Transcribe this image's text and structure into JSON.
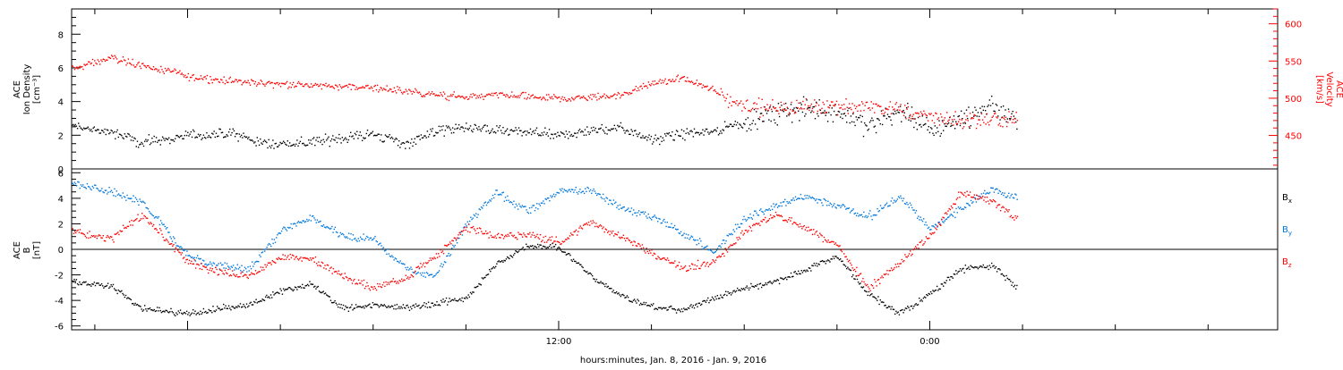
{
  "chart_data": [
    {
      "type": "scatter",
      "panel": "top",
      "ylabel_left": [
        "ACE",
        "Ion Density",
        "[cm⁻³]"
      ],
      "ylabel_right": [
        "ACE",
        "Velocity",
        "[km/s]"
      ],
      "ylim_left": [
        0,
        9.5
      ],
      "yticks_left": [
        0,
        2,
        4,
        6,
        8
      ],
      "ylim_right": [
        405,
        620
      ],
      "yticks_right": [
        450,
        500,
        550,
        600
      ],
      "series": [
        {
          "axis": "left",
          "color": "#000000",
          "x_hours": [
            0,
            1,
            2,
            3,
            4,
            5,
            6,
            7,
            8,
            9,
            10,
            11,
            12,
            13,
            14,
            15,
            16,
            17,
            18,
            19,
            20,
            21,
            22,
            23,
            24,
            25,
            26,
            27,
            28,
            29,
            30,
            31,
            32,
            33,
            34,
            35,
            36,
            37,
            38,
            39,
            40,
            41,
            42,
            43,
            44,
            45,
            46,
            47,
            48,
            49,
            50,
            51,
            52,
            53,
            54,
            55,
            56,
            57,
            58,
            59,
            60,
            61,
            62,
            63,
            64,
            65,
            66,
            67,
            68,
            69,
            70,
            71,
            72,
            73,
            74,
            75,
            76,
            77,
            78,
            79,
            80,
            81,
            82,
            83,
            84,
            85,
            86,
            87,
            88,
            89,
            90,
            91,
            92,
            93,
            94,
            95,
            96,
            97,
            98,
            99,
            100,
            101,
            102,
            103,
            104,
            105,
            106,
            107,
            108,
            109,
            110,
            111,
            112,
            113,
            114,
            115,
            116,
            117,
            118,
            119,
            120,
            121,
            122,
            123,
            124,
            125,
            126,
            127,
            128,
            129,
            130,
            131,
            132,
            133,
            134,
            135,
            136,
            137,
            138,
            139,
            140,
            141,
            142,
            143,
            144,
            145,
            146,
            147,
            148,
            149,
            150,
            151,
            152,
            153,
            154,
            155,
            156,
            157,
            158,
            159,
            160,
            161,
            162,
            163,
            164,
            165,
            166,
            167,
            168,
            169,
            170,
            171,
            172,
            173,
            174,
            175,
            176,
            177,
            178,
            179,
            180,
            181,
            182,
            183,
            184,
            185,
            186,
            187,
            188,
            189,
            190,
            191,
            192,
            193,
            194,
            195,
            196,
            197,
            198,
            199,
            200,
            201,
            202,
            203,
            204,
            205,
            206,
            207,
            208,
            209,
            210,
            211,
            212,
            213,
            214,
            215,
            216,
            217,
            218,
            219,
            220,
            221,
            222,
            223,
            224,
            225,
            226,
            227,
            228,
            229,
            230,
            231,
            232,
            233,
            234,
            235,
            236,
            237,
            238,
            239,
            240,
            241,
            242,
            243,
            244,
            245,
            246,
            247,
            248,
            249,
            250,
            251,
            252,
            253,
            254,
            255,
            256,
            257,
            258,
            259,
            260,
            261,
            262,
            263,
            264,
            265,
            266,
            267,
            268,
            269,
            270,
            271,
            272,
            273,
            274,
            275,
            276,
            277,
            278,
            279,
            280,
            281,
            282,
            283,
            284,
            285,
            286,
            287,
            288,
            289,
            290,
            291,
            292,
            293,
            294,
            295,
            296,
            297,
            298,
            299
          ],
          "note": "values generated procedurally; see values array",
          "values": []
        },
        {
          "axis": "right",
          "color": "#ff0000",
          "values": []
        }
      ]
    },
    {
      "type": "scatter",
      "panel": "bottom",
      "ylabel_left": [
        "ACE",
        "B",
        "[nT]"
      ],
      "ylim": [
        -6.3,
        6.3
      ],
      "yticks": [
        -6,
        -4,
        -2,
        0,
        2,
        4,
        6
      ],
      "zero_line": true,
      "legend": [
        {
          "label": "B",
          "sub": "x",
          "color": "#000000"
        },
        {
          "label": "B",
          "sub": "y",
          "color": "#0077dd"
        },
        {
          "label": "B",
          "sub": "z",
          "color": "#ff0000"
        }
      ]
    }
  ],
  "xaxis": {
    "label": "hours:minutes, Jan.  8, 2016 - Jan.  9, 2016",
    "tick_labels": [
      {
        "hour": 12,
        "label": "12:00"
      },
      {
        "hour": 24,
        "label": "0:00"
      }
    ],
    "range_hours": [
      -3.75,
      35.25
    ],
    "data_end_hour": 26.8
  },
  "series_keyframes": {
    "density": [
      [
        -3.75,
        2.6
      ],
      [
        -2.5,
        2.2
      ],
      [
        -1.5,
        1.6
      ],
      [
        0,
        2.0
      ],
      [
        1.5,
        2.1
      ],
      [
        2.5,
        1.5
      ],
      [
        4,
        1.6
      ],
      [
        5,
        1.9
      ],
      [
        6,
        2.1
      ],
      [
        7,
        1.5
      ],
      [
        8,
        2.3
      ],
      [
        9,
        2.5
      ],
      [
        10,
        2.3
      ],
      [
        11,
        2.2
      ],
      [
        12,
        2.0
      ],
      [
        13,
        2.3
      ],
      [
        14,
        2.5
      ],
      [
        15,
        1.8
      ],
      [
        16,
        2.1
      ],
      [
        17,
        2.3
      ],
      [
        18,
        2.8
      ],
      [
        19,
        3.3
      ],
      [
        20,
        3.6
      ],
      [
        21,
        3.4
      ],
      [
        22,
        2.6
      ],
      [
        23,
        3.5
      ],
      [
        24,
        2.3
      ],
      [
        25,
        3.0
      ],
      [
        26,
        3.8
      ],
      [
        26.8,
        3.0
      ]
    ],
    "velocity": [
      [
        -3.75,
        540
      ],
      [
        -2.5,
        555
      ],
      [
        -1.5,
        545
      ],
      [
        0,
        530
      ],
      [
        2,
        522
      ],
      [
        4,
        518
      ],
      [
        6,
        515
      ],
      [
        7,
        510
      ],
      [
        8,
        505
      ],
      [
        9,
        502
      ],
      [
        10,
        505
      ],
      [
        11,
        503
      ],
      [
        12,
        500
      ],
      [
        13,
        502
      ],
      [
        14,
        505
      ],
      [
        15,
        520
      ],
      [
        16,
        528
      ],
      [
        17,
        510
      ],
      [
        18,
        490
      ],
      [
        19,
        488
      ],
      [
        20,
        490
      ],
      [
        21,
        492
      ],
      [
        22,
        488
      ],
      [
        23,
        486
      ],
      [
        24,
        475
      ],
      [
        25,
        470
      ],
      [
        26,
        472
      ],
      [
        26.8,
        470
      ]
    ],
    "bx": [
      [
        -3.75,
        -2.5
      ],
      [
        -2.5,
        -2.8
      ],
      [
        -1.5,
        -4.6
      ],
      [
        0,
        -5.0
      ],
      [
        1,
        -4.6
      ],
      [
        2,
        -4.3
      ],
      [
        3,
        -3.2
      ],
      [
        4,
        -2.7
      ],
      [
        5,
        -4.6
      ],
      [
        6,
        -4.3
      ],
      [
        7,
        -4.5
      ],
      [
        8,
        -4.2
      ],
      [
        9,
        -3.8
      ],
      [
        10,
        -1.0
      ],
      [
        11,
        0.3
      ],
      [
        12,
        0.2
      ],
      [
        13,
        -2.0
      ],
      [
        14,
        -3.5
      ],
      [
        15,
        -4.5
      ],
      [
        16,
        -4.7
      ],
      [
        17,
        -3.8
      ],
      [
        18,
        -3.0
      ],
      [
        19,
        -2.5
      ],
      [
        20,
        -1.5
      ],
      [
        21,
        -0.5
      ],
      [
        22,
        -3.5
      ],
      [
        23,
        -5.0
      ],
      [
        24,
        -3.5
      ],
      [
        25,
        -1.5
      ],
      [
        26,
        -1.2
      ],
      [
        26.8,
        -3.0
      ]
    ],
    "by": [
      [
        -3.75,
        5.3
      ],
      [
        -2.5,
        4.5
      ],
      [
        -1.5,
        3.8
      ],
      [
        0,
        -0.5
      ],
      [
        1,
        -1.2
      ],
      [
        2,
        -1.5
      ],
      [
        3,
        1.5
      ],
      [
        4,
        2.5
      ],
      [
        5,
        1.0
      ],
      [
        6,
        0.8
      ],
      [
        7,
        -1.5
      ],
      [
        8,
        -2.0
      ],
      [
        9,
        2.0
      ],
      [
        10,
        4.5
      ],
      [
        11,
        3.0
      ],
      [
        12,
        4.6
      ],
      [
        13,
        4.7
      ],
      [
        14,
        3.3
      ],
      [
        15,
        2.6
      ],
      [
        16,
        1.3
      ],
      [
        17,
        -0.2
      ],
      [
        18,
        2.5
      ],
      [
        19,
        3.5
      ],
      [
        20,
        4.2
      ],
      [
        21,
        3.5
      ],
      [
        22,
        2.6
      ],
      [
        23,
        4.2
      ],
      [
        24,
        1.6
      ],
      [
        25,
        3.2
      ],
      [
        26,
        4.8
      ],
      [
        26.8,
        4.0
      ]
    ],
    "bz": [
      [
        -3.75,
        1.5
      ],
      [
        -2.5,
        0.8
      ],
      [
        -1.5,
        2.8
      ],
      [
        0,
        -1.0
      ],
      [
        1,
        -1.7
      ],
      [
        2,
        -2.0
      ],
      [
        3,
        -0.5
      ],
      [
        4,
        -0.8
      ],
      [
        5,
        -2.0
      ],
      [
        6,
        -3.0
      ],
      [
        7,
        -2.2
      ],
      [
        8,
        -0.5
      ],
      [
        9,
        1.8
      ],
      [
        10,
        1.0
      ],
      [
        11,
        1.2
      ],
      [
        12,
        0.6
      ],
      [
        13,
        2.2
      ],
      [
        14,
        1.0
      ],
      [
        15,
        -0.3
      ],
      [
        16,
        -1.4
      ],
      [
        17,
        -1.0
      ],
      [
        18,
        1.5
      ],
      [
        19,
        2.8
      ],
      [
        20,
        1.6
      ],
      [
        21,
        0.3
      ],
      [
        22,
        -3.0
      ],
      [
        23,
        -1.0
      ],
      [
        24,
        1.2
      ],
      [
        25,
        4.5
      ],
      [
        26,
        3.8
      ],
      [
        26.8,
        2.5
      ]
    ]
  }
}
